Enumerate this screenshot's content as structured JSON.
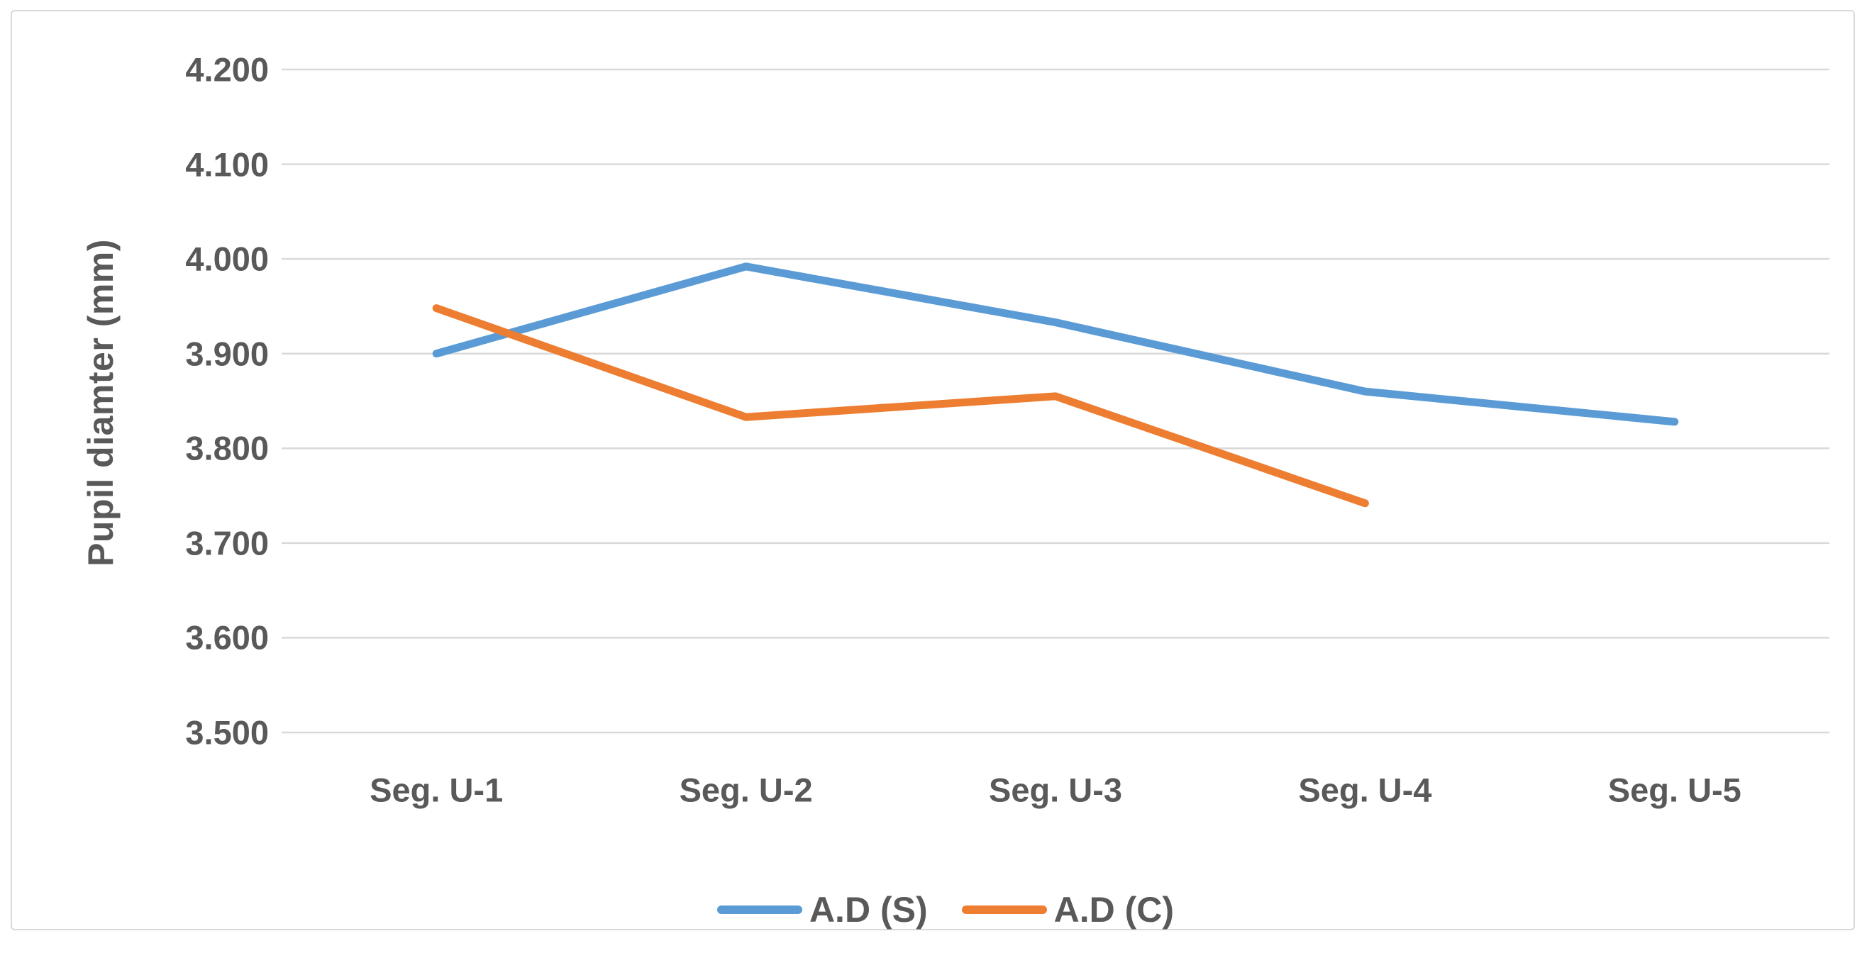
{
  "figure": {
    "background": "#ffffff",
    "border_color": "#d9d9d9",
    "grid_color": "#d9d9d9",
    "text_color": "#595959"
  },
  "chart_data": {
    "type": "line",
    "title": "",
    "xlabel": "",
    "ylabel": "Pupil diamter (mm)",
    "categories": [
      "Seg. U-1",
      "Seg. U-2",
      "Seg. U-3",
      "Seg. U-4",
      "Seg. U-5"
    ],
    "series": [
      {
        "name": "A.D (S)",
        "color": "#5b9bd5",
        "values": [
          3.9,
          3.992,
          3.933,
          3.86,
          3.828
        ]
      },
      {
        "name": "A.D (C)",
        "color": "#ed7d31",
        "values": [
          3.948,
          3.833,
          3.855,
          3.742,
          null
        ]
      }
    ],
    "ylim": [
      3.5,
      4.2
    ],
    "ytick_labels": [
      "3.500",
      "3.600",
      "3.700",
      "3.800",
      "3.900",
      "4.000",
      "4.100",
      "4.200"
    ],
    "grid": true,
    "legend_position": "bottom"
  }
}
